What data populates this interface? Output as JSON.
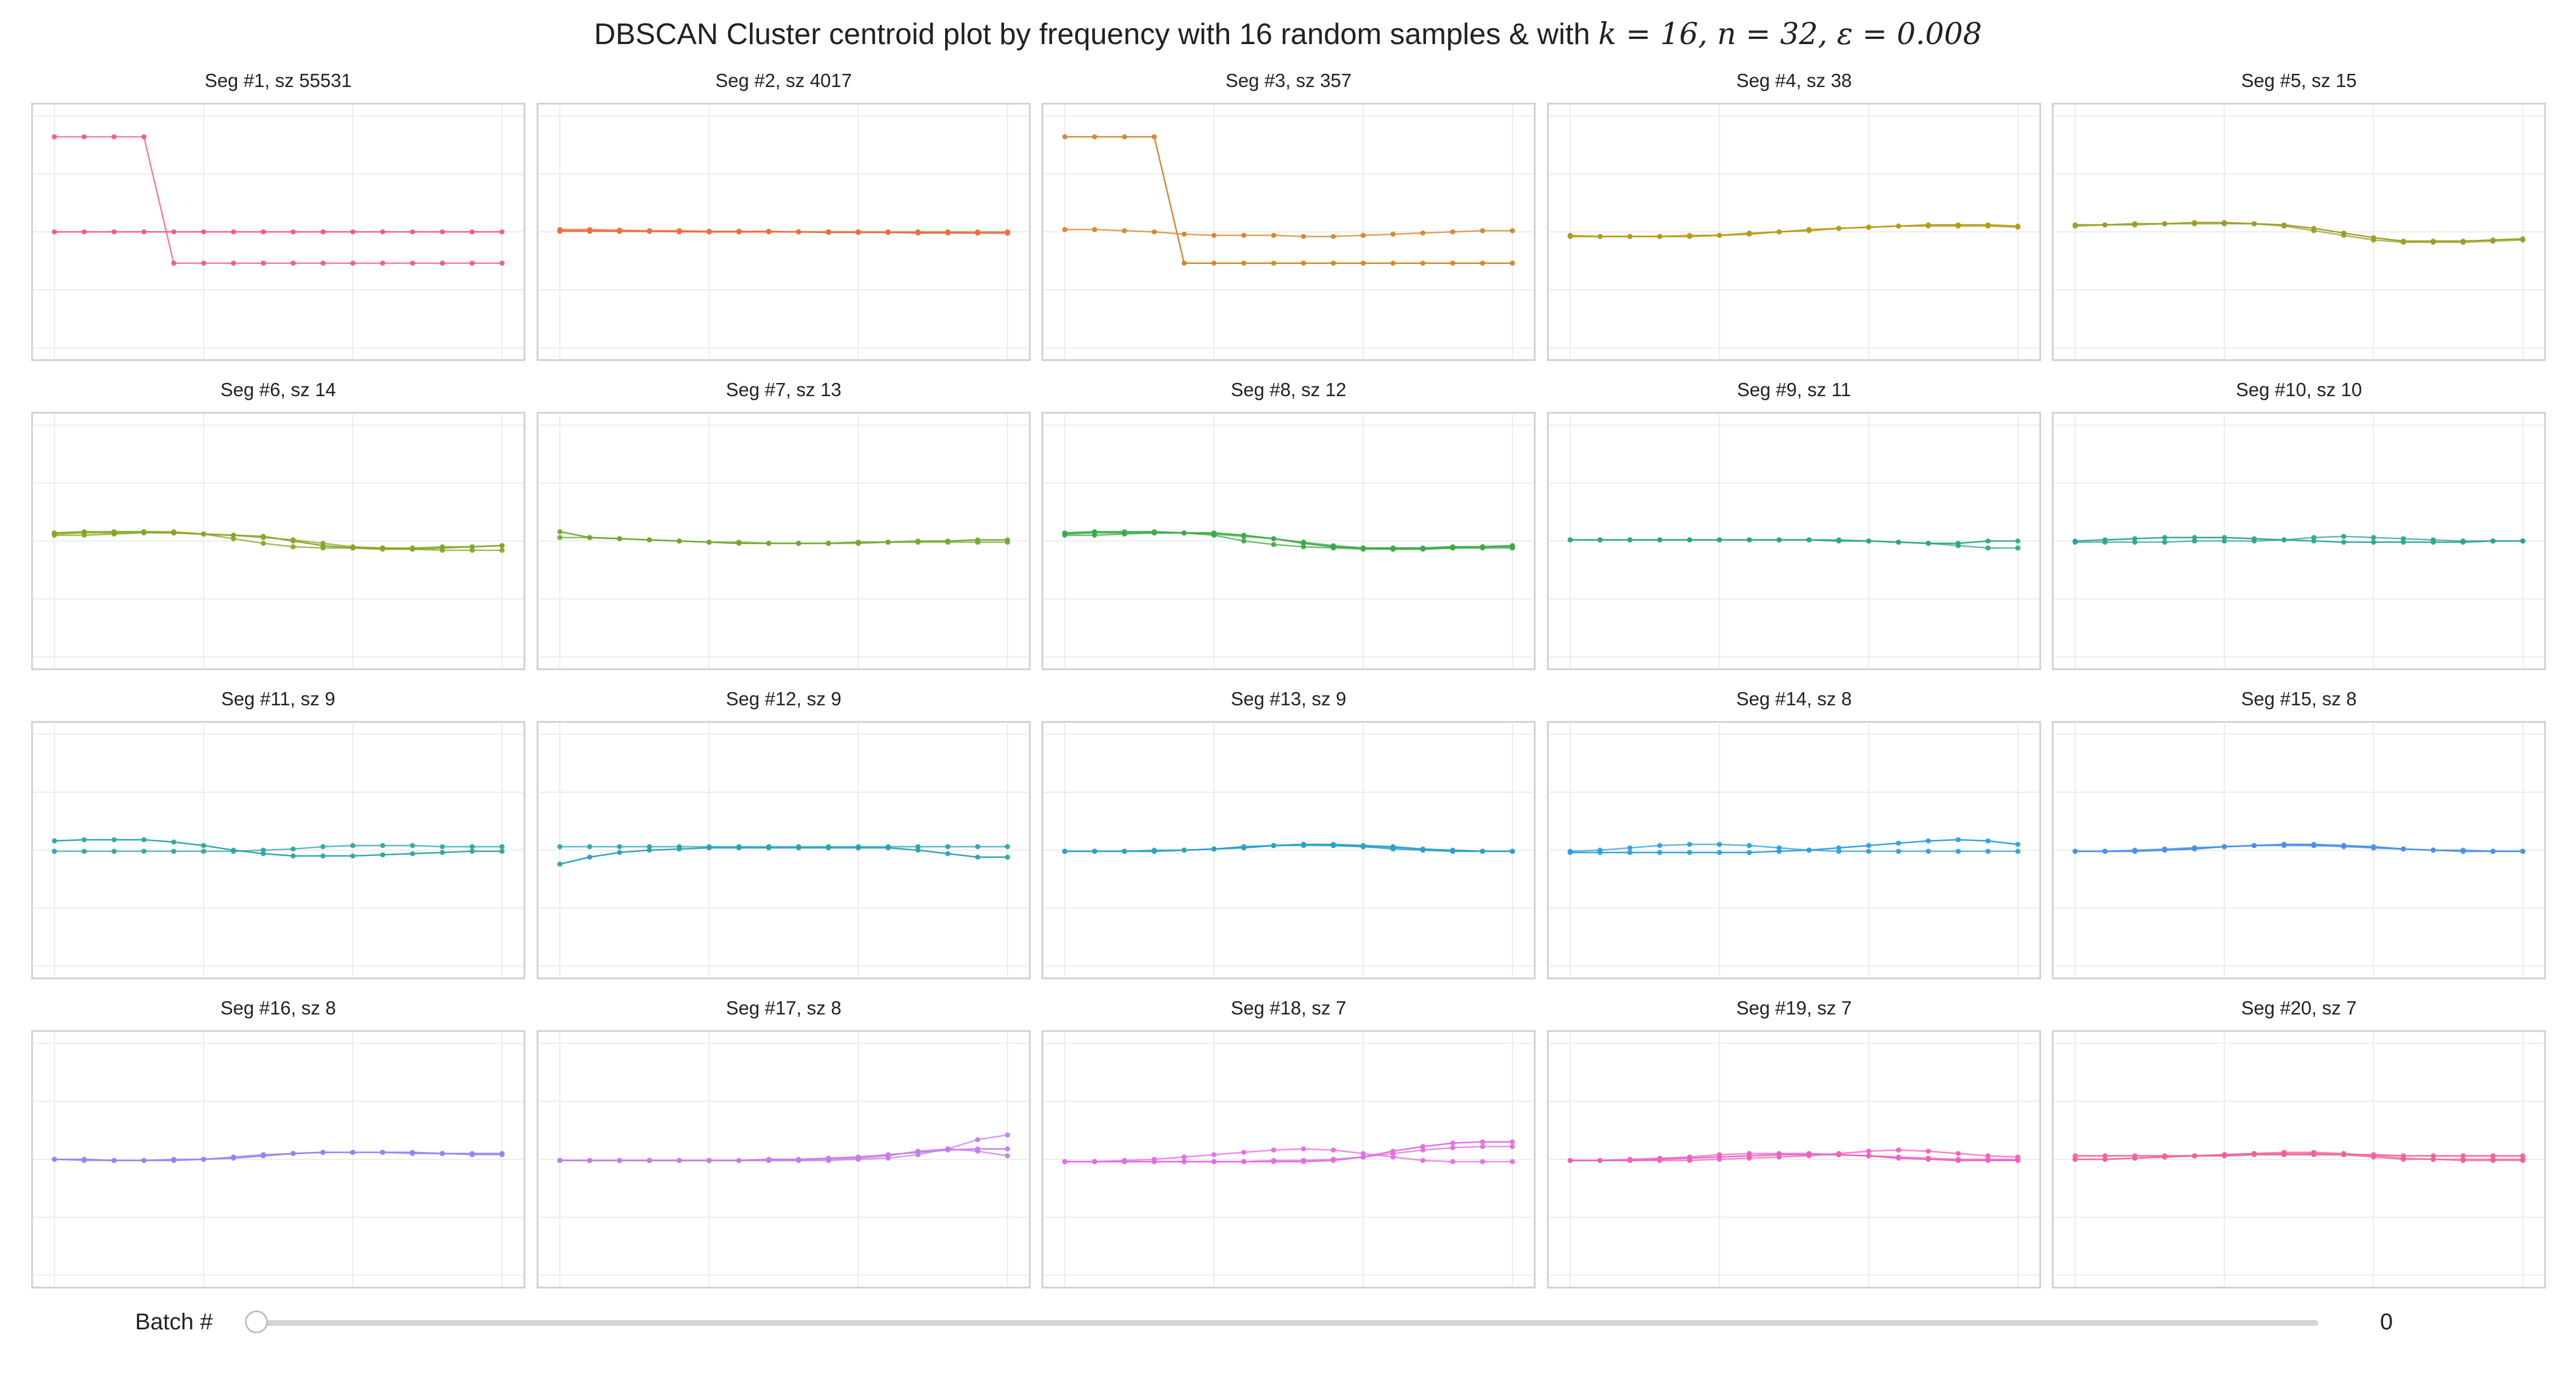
{
  "title": {
    "prefix": "DBSCAN Cluster centroid plot by frequency with 16 random samples & with ",
    "math": "k = 16, n = 32, ε = 0.008"
  },
  "slider": {
    "label": "Batch #",
    "value": "0",
    "fraction": 0
  },
  "chart_data": {
    "type": "line",
    "ylim": [
      -1,
      1
    ],
    "grid": true,
    "panels": [
      {
        "title": "Seg #1, sz 55531",
        "color": "#f2557a",
        "series": [
          [
            0,
            0,
            0,
            0,
            0,
            0,
            0,
            0,
            0,
            0,
            0,
            0,
            0,
            0,
            0,
            0
          ],
          [
            0.82,
            0.82,
            0.82,
            0.82,
            -0.27,
            -0.27,
            -0.27,
            -0.27,
            -0.27,
            -0.27,
            -0.27,
            -0.27,
            -0.27,
            -0.27,
            -0.27,
            -0.27
          ]
        ]
      },
      {
        "title": "Seg #2, sz 4017",
        "color": "#ee6b3d",
        "series": [
          [
            0.01,
            0.01,
            0.005,
            0.005,
            0.005,
            0.0,
            0.0,
            0.0,
            0.0,
            -0.005,
            -0.005,
            -0.005,
            -0.01,
            -0.01,
            -0.01,
            -0.01
          ],
          [
            0.02,
            0.02,
            0.015,
            0.01,
            0.01,
            0.005,
            0.005,
            0.005,
            0.0,
            0.0,
            0.0,
            -0.005,
            -0.005,
            -0.005,
            -0.01,
            -0.01
          ],
          [
            0.005,
            0.005,
            0.005,
            0.005,
            0.0,
            0.0,
            0.0,
            0.0,
            0.0,
            0.0,
            0.0,
            0.0,
            0.0,
            0.0,
            0.0,
            0.0
          ]
        ]
      },
      {
        "title": "Seg #3, sz 357",
        "color": "#d38326",
        "series": [
          [
            0.82,
            0.82,
            0.82,
            0.82,
            -0.27,
            -0.27,
            -0.27,
            -0.27,
            -0.27,
            -0.27,
            -0.27,
            -0.27,
            -0.27,
            -0.27,
            -0.27,
            -0.27
          ],
          [
            0.02,
            0.02,
            0.01,
            0.0,
            -0.02,
            -0.03,
            -0.03,
            -0.03,
            -0.04,
            -0.04,
            -0.03,
            -0.02,
            -0.01,
            0.0,
            0.01,
            0.01
          ]
        ]
      },
      {
        "title": "Seg #4, sz 38",
        "color": "#b59a16",
        "series": [
          [
            -0.04,
            -0.04,
            -0.04,
            -0.04,
            -0.04,
            -0.03,
            -0.02,
            0.0,
            0.01,
            0.03,
            0.04,
            0.05,
            0.06,
            0.06,
            0.06,
            0.05
          ],
          [
            -0.03,
            -0.04,
            -0.04,
            -0.04,
            -0.03,
            -0.03,
            -0.01,
            0.0,
            0.02,
            0.03,
            0.04,
            0.05,
            0.05,
            0.05,
            0.05,
            0.04
          ]
        ]
      },
      {
        "title": "Seg #5, sz 15",
        "color": "#9a9c26",
        "series": [
          [
            0.06,
            0.06,
            0.07,
            0.07,
            0.08,
            0.08,
            0.07,
            0.06,
            0.03,
            -0.01,
            -0.05,
            -0.08,
            -0.08,
            -0.08,
            -0.07,
            -0.06
          ],
          [
            0.05,
            0.06,
            0.06,
            0.07,
            0.07,
            0.07,
            0.07,
            0.05,
            0.01,
            -0.03,
            -0.07,
            -0.09,
            -0.09,
            -0.09,
            -0.08,
            -0.07
          ]
        ]
      },
      {
        "title": "Seg #6, sz 14",
        "color": "#84a624",
        "series": [
          [
            0.07,
            0.08,
            0.08,
            0.08,
            0.07,
            0.06,
            0.05,
            0.04,
            0.0,
            -0.04,
            -0.06,
            -0.07,
            -0.07,
            -0.06,
            -0.05,
            -0.04
          ],
          [
            0.05,
            0.05,
            0.06,
            0.07,
            0.07,
            0.06,
            0.02,
            -0.02,
            -0.05,
            -0.06,
            -0.06,
            -0.06,
            -0.07,
            -0.08,
            -0.08,
            -0.08
          ],
          [
            0.06,
            0.07,
            0.07,
            0.08,
            0.08,
            0.06,
            0.05,
            0.03,
            0.01,
            -0.02,
            -0.05,
            -0.06,
            -0.06,
            -0.05,
            -0.05,
            -0.04
          ]
        ]
      },
      {
        "title": "Seg #7, sz 13",
        "color": "#6fa82c",
        "series": [
          [
            0.08,
            0.03,
            0.02,
            0.01,
            0.0,
            -0.01,
            -0.02,
            -0.02,
            -0.02,
            -0.02,
            -0.01,
            -0.01,
            0.0,
            0.0,
            0.01,
            0.01
          ],
          [
            0.03,
            0.03,
            0.02,
            0.01,
            0.0,
            -0.01,
            -0.01,
            -0.02,
            -0.02,
            -0.02,
            -0.02,
            -0.01,
            -0.01,
            -0.01,
            -0.01,
            -0.01
          ]
        ]
      },
      {
        "title": "Seg #8, sz 12",
        "color": "#3aaa46",
        "series": [
          [
            0.07,
            0.08,
            0.08,
            0.08,
            0.07,
            0.07,
            0.05,
            0.02,
            -0.02,
            -0.05,
            -0.06,
            -0.06,
            -0.06,
            -0.05,
            -0.05,
            -0.04
          ],
          [
            0.05,
            0.05,
            0.06,
            0.07,
            0.07,
            0.05,
            0.0,
            -0.03,
            -0.05,
            -0.06,
            -0.07,
            -0.07,
            -0.07,
            -0.06,
            -0.06,
            -0.06
          ],
          [
            0.06,
            0.07,
            0.07,
            0.07,
            0.07,
            0.06,
            0.04,
            0.02,
            -0.01,
            -0.04,
            -0.06,
            -0.07,
            -0.07,
            -0.06,
            -0.05,
            -0.05
          ]
        ]
      },
      {
        "title": "Seg #9, sz 11",
        "color": "#2aa97b",
        "series": [
          [
            0.01,
            0.01,
            0.01,
            0.01,
            0.01,
            0.01,
            0.01,
            0.01,
            0.01,
            0.0,
            0.0,
            -0.01,
            -0.02,
            -0.02,
            0.0,
            0.0
          ],
          [
            0.01,
            0.01,
            0.01,
            0.01,
            0.01,
            0.01,
            0.01,
            0.01,
            0.01,
            0.01,
            0.0,
            -0.01,
            -0.02,
            -0.04,
            -0.06,
            -0.06
          ]
        ]
      },
      {
        "title": "Seg #10, sz 10",
        "color": "#2aa392",
        "series": [
          [
            0.0,
            0.01,
            0.02,
            0.03,
            0.03,
            0.03,
            0.02,
            0.01,
            0.0,
            -0.01,
            -0.01,
            -0.01,
            -0.01,
            -0.01,
            0.0,
            0.0
          ],
          [
            -0.01,
            -0.01,
            -0.01,
            -0.01,
            0.0,
            0.0,
            0.0,
            0.01,
            0.03,
            0.04,
            0.03,
            0.02,
            0.01,
            0.0,
            0.0,
            0.0
          ]
        ]
      },
      {
        "title": "Seg #11, sz 9",
        "color": "#2aa3a4",
        "series": [
          [
            0.08,
            0.09,
            0.09,
            0.09,
            0.07,
            0.04,
            0.0,
            -0.03,
            -0.05,
            -0.05,
            -0.05,
            -0.04,
            -0.03,
            -0.02,
            -0.01,
            -0.01
          ],
          [
            -0.01,
            -0.01,
            -0.01,
            -0.01,
            -0.01,
            -0.01,
            -0.01,
            0.0,
            0.01,
            0.03,
            0.04,
            0.04,
            0.04,
            0.03,
            0.03,
            0.03
          ]
        ]
      },
      {
        "title": "Seg #12, sz 9",
        "color": "#2aa0b0",
        "series": [
          [
            -0.12,
            -0.06,
            -0.02,
            0.0,
            0.01,
            0.02,
            0.02,
            0.02,
            0.02,
            0.02,
            0.02,
            0.02,
            0.0,
            -0.03,
            -0.06,
            -0.06
          ],
          [
            0.03,
            0.03,
            0.03,
            0.03,
            0.03,
            0.03,
            0.03,
            0.03,
            0.03,
            0.03,
            0.03,
            0.03,
            0.03,
            0.03,
            0.03,
            0.03
          ]
        ]
      },
      {
        "title": "Seg #13, sz 9",
        "color": "#2aa1c4",
        "series": [
          [
            -0.01,
            -0.01,
            -0.01,
            -0.01,
            0.0,
            0.01,
            0.03,
            0.04,
            0.05,
            0.05,
            0.04,
            0.03,
            0.01,
            0.0,
            -0.01,
            -0.01
          ],
          [
            -0.01,
            -0.01,
            -0.01,
            -0.01,
            0.0,
            0.01,
            0.02,
            0.04,
            0.05,
            0.04,
            0.03,
            0.01,
            0.0,
            -0.01,
            -0.01,
            -0.01
          ],
          [
            -0.01,
            -0.01,
            -0.01,
            0.0,
            0.0,
            0.01,
            0.02,
            0.04,
            0.04,
            0.04,
            0.03,
            0.02,
            0.0,
            -0.01,
            -0.01,
            -0.01
          ]
        ]
      },
      {
        "title": "Seg #14, sz 8",
        "color": "#2a9edc",
        "series": [
          [
            -0.02,
            -0.02,
            -0.02,
            -0.02,
            -0.02,
            -0.02,
            -0.02,
            -0.01,
            0.0,
            0.02,
            0.04,
            0.06,
            0.08,
            0.09,
            0.08,
            0.05
          ],
          [
            -0.01,
            0.0,
            0.02,
            0.04,
            0.05,
            0.05,
            0.04,
            0.02,
            0.0,
            -0.01,
            -0.01,
            -0.01,
            -0.01,
            -0.01,
            -0.01,
            -0.01
          ]
        ]
      },
      {
        "title": "Seg #15, sz 8",
        "color": "#4a90e8",
        "series": [
          [
            -0.01,
            -0.01,
            -0.01,
            0.0,
            0.01,
            0.03,
            0.04,
            0.05,
            0.05,
            0.04,
            0.03,
            0.01,
            0.0,
            -0.01,
            -0.01,
            -0.01
          ],
          [
            -0.01,
            -0.01,
            0.0,
            0.01,
            0.02,
            0.03,
            0.04,
            0.05,
            0.04,
            0.04,
            0.02,
            0.01,
            0.0,
            -0.01,
            -0.01,
            -0.01
          ],
          [
            -0.01,
            -0.01,
            -0.01,
            0.0,
            0.02,
            0.03,
            0.04,
            0.04,
            0.04,
            0.03,
            0.02,
            0.01,
            0.0,
            0.0,
            -0.01,
            -0.01
          ]
        ]
      },
      {
        "title": "Seg #16, sz 8",
        "color": "#8d86f3",
        "series": [
          [
            0.0,
            0.0,
            -0.01,
            -0.01,
            -0.01,
            0.0,
            0.01,
            0.03,
            0.05,
            0.06,
            0.06,
            0.06,
            0.06,
            0.05,
            0.05,
            0.05
          ],
          [
            0.0,
            -0.01,
            -0.01,
            -0.01,
            0.0,
            0.0,
            0.02,
            0.04,
            0.05,
            0.06,
            0.06,
            0.06,
            0.05,
            0.05,
            0.04,
            0.04
          ]
        ]
      },
      {
        "title": "Seg #17, sz 8",
        "color": "#c47be8",
        "series": [
          [
            -0.01,
            -0.01,
            -0.01,
            -0.01,
            -0.01,
            -0.01,
            -0.01,
            0.0,
            0.0,
            0.01,
            0.02,
            0.04,
            0.06,
            0.08,
            0.09,
            0.09
          ],
          [
            -0.01,
            -0.01,
            -0.01,
            -0.01,
            -0.01,
            -0.01,
            -0.01,
            -0.01,
            -0.01,
            0.0,
            0.01,
            0.03,
            0.07,
            0.09,
            0.07,
            0.03
          ],
          [
            -0.01,
            -0.01,
            -0.01,
            -0.01,
            -0.01,
            -0.01,
            -0.01,
            -0.01,
            -0.01,
            -0.01,
            0.0,
            0.01,
            0.04,
            0.09,
            0.17,
            0.21
          ]
        ]
      },
      {
        "title": "Seg #18, sz 7",
        "color": "#e26be0",
        "series": [
          [
            -0.02,
            -0.02,
            -0.02,
            -0.02,
            -0.02,
            -0.02,
            -0.02,
            -0.02,
            -0.02,
            -0.01,
            0.02,
            0.07,
            0.11,
            0.14,
            0.15,
            0.15
          ],
          [
            -0.02,
            -0.02,
            -0.01,
            0.0,
            0.02,
            0.04,
            0.06,
            0.08,
            0.09,
            0.08,
            0.05,
            0.02,
            -0.01,
            -0.02,
            -0.02,
            -0.02
          ],
          [
            -0.02,
            -0.02,
            -0.02,
            -0.02,
            -0.02,
            -0.02,
            -0.02,
            -0.01,
            -0.01,
            0.0,
            0.02,
            0.05,
            0.08,
            0.1,
            0.11,
            0.11
          ]
        ]
      },
      {
        "title": "Seg #19, sz 7",
        "color": "#ed5fbf",
        "series": [
          [
            -0.01,
            -0.01,
            -0.01,
            0.0,
            0.01,
            0.02,
            0.03,
            0.04,
            0.04,
            0.04,
            0.03,
            0.01,
            0.0,
            -0.01,
            -0.01,
            -0.01
          ],
          [
            -0.01,
            -0.01,
            0.0,
            0.01,
            0.02,
            0.04,
            0.05,
            0.05,
            0.05,
            0.04,
            0.03,
            0.02,
            0.01,
            0.0,
            0.0,
            0.0
          ],
          [
            -0.01,
            -0.01,
            -0.01,
            -0.01,
            -0.01,
            0.0,
            0.01,
            0.02,
            0.03,
            0.05,
            0.07,
            0.08,
            0.07,
            0.05,
            0.03,
            0.02
          ]
        ]
      },
      {
        "title": "Seg #20, sz 7",
        "color": "#f0609a",
        "series": [
          [
            0.03,
            0.03,
            0.03,
            0.03,
            0.03,
            0.03,
            0.04,
            0.04,
            0.04,
            0.04,
            0.04,
            0.03,
            0.03,
            0.03,
            0.03,
            0.03
          ],
          [
            0.0,
            0.0,
            0.01,
            0.02,
            0.03,
            0.04,
            0.05,
            0.06,
            0.06,
            0.05,
            0.03,
            0.01,
            0.0,
            -0.01,
            -0.01,
            -0.01
          ],
          [
            0.0,
            0.0,
            0.01,
            0.02,
            0.03,
            0.04,
            0.05,
            0.05,
            0.05,
            0.04,
            0.02,
            0.0,
            0.0,
            0.0,
            0.0,
            0.0
          ]
        ]
      }
    ]
  }
}
